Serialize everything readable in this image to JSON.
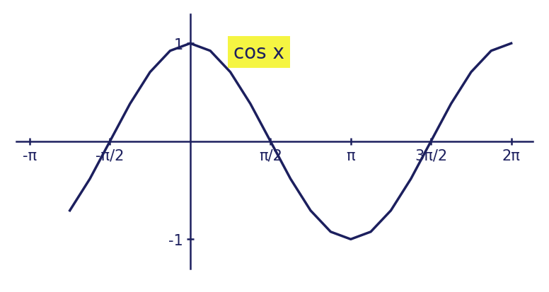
{
  "chart_data": {
    "type": "line",
    "title": "cos x",
    "x": [
      -2.356,
      -1.963,
      -1.571,
      -1.178,
      -0.785,
      -0.393,
      0,
      0.393,
      0.785,
      1.178,
      1.571,
      1.963,
      2.356,
      2.749,
      3.142,
      3.534,
      3.927,
      4.32,
      4.712,
      5.105,
      5.498,
      5.89,
      6.283
    ],
    "values": [
      -0.707,
      -0.383,
      0,
      0.383,
      0.707,
      0.924,
      1,
      0.924,
      0.707,
      0.383,
      0,
      -0.383,
      -0.707,
      -0.924,
      -1,
      -0.924,
      -0.707,
      -0.383,
      0,
      0.383,
      0.707,
      0.924,
      1
    ],
    "color": "#1c1f5e",
    "xlim": [
      -3.4,
      6.7
    ],
    "ylim": [
      -1.3,
      1.3
    ],
    "xticks": [
      {
        "value": -3.142,
        "label": "-π"
      },
      {
        "value": -1.571,
        "label": "-π/2"
      },
      {
        "value": 1.571,
        "label": "π/2"
      },
      {
        "value": 3.142,
        "label": "π"
      },
      {
        "value": 4.712,
        "label": "3π/2"
      },
      {
        "value": 6.283,
        "label": "2π"
      }
    ],
    "yticks": [
      -1,
      1
    ],
    "grid": false
  }
}
